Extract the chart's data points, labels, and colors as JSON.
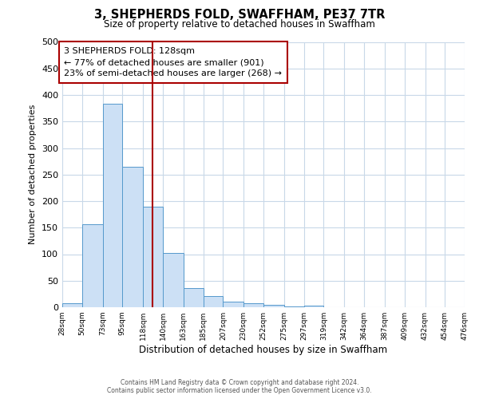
{
  "title": "3, SHEPHERDS FOLD, SWAFFHAM, PE37 7TR",
  "subtitle": "Size of property relative to detached houses in Swaffham",
  "xlabel": "Distribution of detached houses by size in Swaffham",
  "ylabel": "Number of detached properties",
  "footer_line1": "Contains HM Land Registry data © Crown copyright and database right 2024.",
  "footer_line2": "Contains public sector information licensed under the Open Government Licence v3.0.",
  "bin_labels": [
    "28sqm",
    "50sqm",
    "73sqm",
    "95sqm",
    "118sqm",
    "140sqm",
    "163sqm",
    "185sqm",
    "207sqm",
    "230sqm",
    "252sqm",
    "275sqm",
    "297sqm",
    "319sqm",
    "342sqm",
    "364sqm",
    "387sqm",
    "409sqm",
    "432sqm",
    "454sqm",
    "476sqm"
  ],
  "bar_values": [
    7,
    157,
    383,
    265,
    190,
    102,
    36,
    21,
    11,
    8,
    4,
    1,
    3,
    0,
    0,
    0,
    0,
    0,
    0,
    0
  ],
  "bin_edges": [
    28,
    50,
    73,
    95,
    118,
    140,
    163,
    185,
    207,
    230,
    252,
    275,
    297,
    319,
    342,
    364,
    387,
    409,
    432,
    454,
    476
  ],
  "vline_x": 128,
  "annotation_title": "3 SHEPHERDS FOLD: 128sqm",
  "annotation_line2": "← 77% of detached houses are smaller (901)",
  "annotation_line3": "23% of semi-detached houses are larger (268) →",
  "bar_facecolor": "#cce0f5",
  "bar_edgecolor": "#5599cc",
  "vline_color": "#aa0000",
  "annotation_box_edgecolor": "#aa0000",
  "bg_color": "#ffffff",
  "grid_color": "#c8d8e8",
  "ylim": [
    0,
    500
  ],
  "xlim_min": 28,
  "xlim_max": 476
}
